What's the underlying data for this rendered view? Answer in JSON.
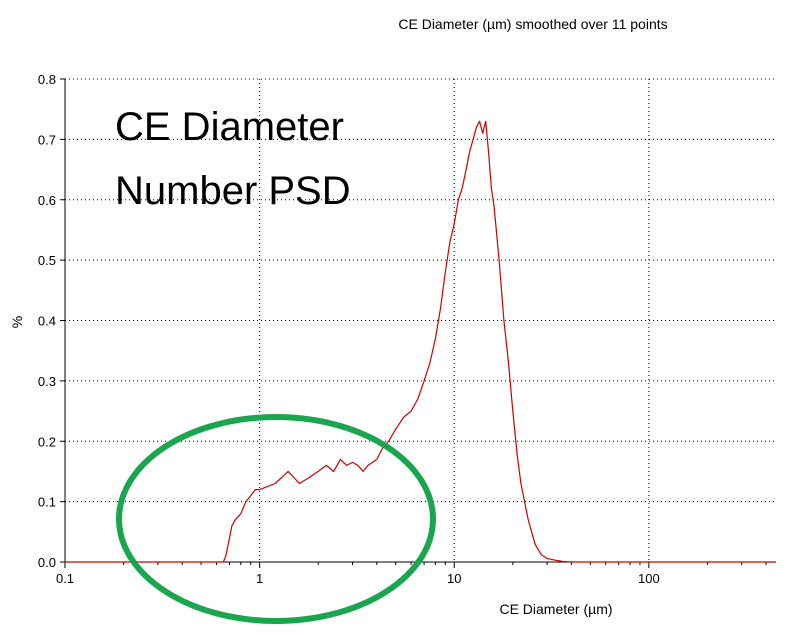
{
  "chart_data": {
    "type": "line",
    "title": "CE Diameter (µm) smoothed over 11 points",
    "xlabel": "CE Diameter (µm)",
    "ylabel": "%",
    "x_scale": "log",
    "xlim": [
      0.1,
      450
    ],
    "ylim": [
      0,
      0.8
    ],
    "x_ticks": [
      0.1,
      1,
      10,
      100
    ],
    "x_tick_labels": [
      "0.1",
      "1",
      "10",
      "100"
    ],
    "y_ticks": [
      0,
      0.1,
      0.2,
      0.3,
      0.4,
      0.5,
      0.6,
      0.7,
      0.8
    ],
    "y_tick_labels": [
      "0.0",
      "0.1",
      "0.2",
      "0.3",
      "0.4",
      "0.5",
      "0.6",
      "0.7",
      "0.8"
    ],
    "grid": true,
    "annotation": {
      "lines": [
        "CE Diameter",
        "Number PSD"
      ]
    },
    "highlight_ellipse": {
      "color": "#1aa64f"
    },
    "series": [
      {
        "color": "#cc0000",
        "x": [
          0.1,
          0.5,
          0.65,
          0.67,
          0.7,
          0.72,
          0.75,
          0.8,
          0.85,
          0.9,
          0.95,
          1.0,
          1.1,
          1.2,
          1.3,
          1.4,
          1.5,
          1.6,
          1.8,
          2.0,
          2.2,
          2.4,
          2.6,
          2.8,
          3.0,
          3.2,
          3.4,
          3.6,
          3.8,
          4.0,
          4.3,
          4.6,
          5.0,
          5.5,
          6.0,
          6.5,
          7.0,
          7.5,
          8.0,
          8.5,
          9.0,
          9.5,
          10.0,
          10.5,
          11.0,
          11.5,
          12.0,
          12.5,
          13.0,
          13.5,
          14.0,
          14.5,
          15.0,
          15.5,
          16.0,
          17.0,
          18.0,
          19.0,
          20.0,
          21.0,
          22.0,
          24.0,
          26.0,
          28.0,
          30.0,
          33.0,
          36.0,
          40.0,
          45.0,
          60.0,
          100.0,
          200.0,
          450.0
        ],
        "y": [
          0,
          0,
          0,
          0.01,
          0.04,
          0.06,
          0.07,
          0.08,
          0.1,
          0.11,
          0.12,
          0.12,
          0.125,
          0.13,
          0.14,
          0.15,
          0.14,
          0.13,
          0.14,
          0.15,
          0.16,
          0.15,
          0.17,
          0.16,
          0.165,
          0.16,
          0.15,
          0.16,
          0.165,
          0.17,
          0.19,
          0.2,
          0.22,
          0.24,
          0.25,
          0.27,
          0.3,
          0.33,
          0.37,
          0.42,
          0.48,
          0.53,
          0.56,
          0.6,
          0.62,
          0.65,
          0.68,
          0.7,
          0.72,
          0.73,
          0.71,
          0.73,
          0.68,
          0.62,
          0.59,
          0.5,
          0.4,
          0.33,
          0.25,
          0.18,
          0.13,
          0.07,
          0.03,
          0.012,
          0.006,
          0.003,
          0.001,
          0,
          0,
          0,
          0,
          0,
          0
        ]
      }
    ]
  }
}
